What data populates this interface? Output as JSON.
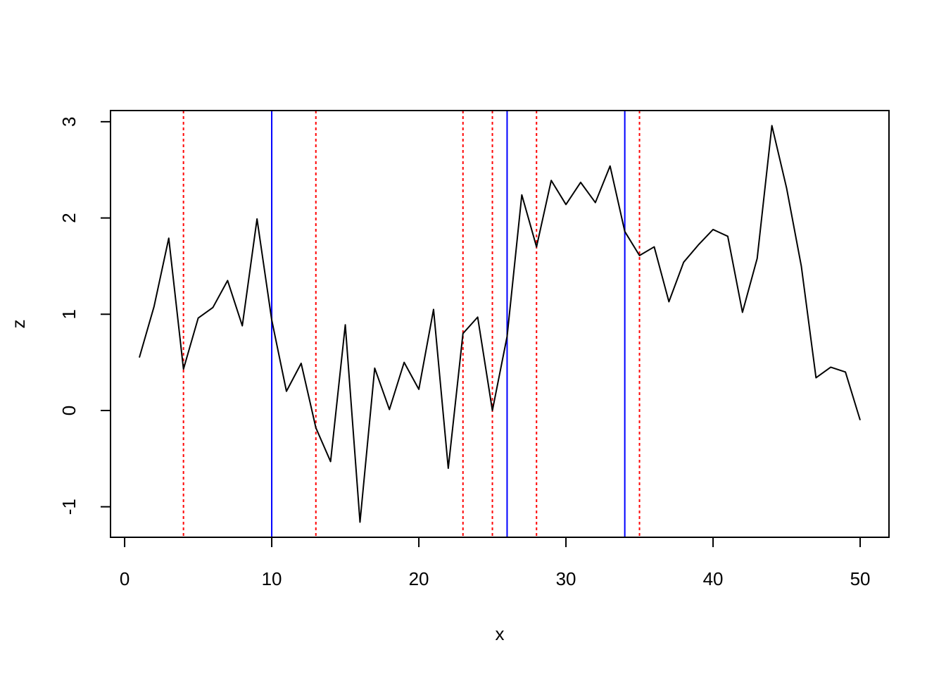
{
  "chart_data": {
    "type": "line",
    "x_label": "x",
    "y_label": "z",
    "x": [
      1,
      2,
      3,
      4,
      5,
      6,
      7,
      8,
      9,
      10,
      11,
      12,
      13,
      14,
      15,
      16,
      17,
      18,
      19,
      20,
      21,
      22,
      23,
      24,
      25,
      26,
      27,
      28,
      29,
      30,
      31,
      32,
      33,
      34,
      35,
      36,
      37,
      38,
      39,
      40,
      41,
      42,
      43,
      44,
      45,
      46,
      47,
      48,
      49,
      50
    ],
    "series": [
      {
        "color": "#000000",
        "values": [
          0.55,
          1.08,
          1.79,
          0.43,
          0.96,
          1.07,
          1.35,
          0.88,
          1.99,
          0.94,
          0.2,
          0.49,
          -0.18,
          -0.53,
          0.89,
          -1.16,
          0.44,
          0.01,
          0.5,
          0.22,
          1.05,
          -0.6,
          0.8,
          0.97,
          0.0,
          0.77,
          2.24,
          1.7,
          2.39,
          2.14,
          2.37,
          2.16,
          2.54,
          1.86,
          1.61,
          1.7,
          1.13,
          1.54,
          1.72,
          1.88,
          1.81,
          1.02,
          1.58,
          2.96,
          2.31,
          1.5,
          0.34,
          0.45,
          0.4,
          -0.1
        ]
      }
    ],
    "reference_lines": [
      {
        "color": "#ff0000",
        "style": "dotted",
        "x": [
          4,
          13,
          23,
          25,
          28,
          35
        ]
      },
      {
        "color": "#0000ff",
        "style": "solid",
        "x": [
          10,
          26,
          34
        ]
      }
    ],
    "xlim": [
      -0.96,
      51.96
    ],
    "ylim": [
      -1.317,
      3.116
    ],
    "xticks": [
      0,
      10,
      20,
      30,
      40,
      50
    ],
    "yticks": [
      -1,
      0,
      1,
      2,
      3
    ],
    "grid": false
  }
}
